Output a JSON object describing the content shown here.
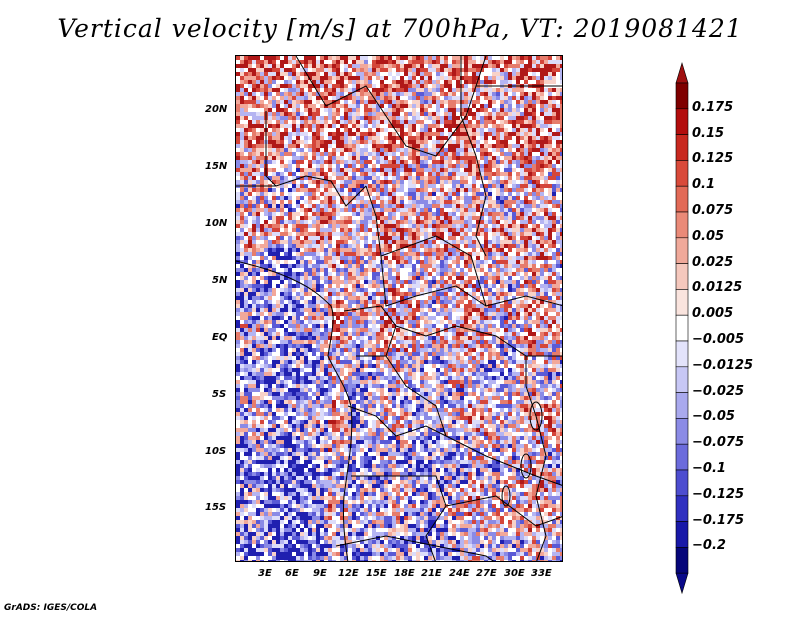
{
  "title": "Vertical velocity [m/s] at 700hPa, VT: 2019081421",
  "footer": "GrADS: IGES/COLA",
  "map": {
    "lat_labels": [
      "20N",
      "15N",
      "10N",
      "5N",
      "EQ",
      "5S",
      "10S",
      "15S"
    ],
    "lon_labels": [
      "3E",
      "6E",
      "9E",
      "12E",
      "15E",
      "18E",
      "21E",
      "24E",
      "27E",
      "30E",
      "33E"
    ]
  },
  "colorbar": {
    "labels": [
      "0.175",
      "0.15",
      "0.125",
      "0.1",
      "0.075",
      "0.05",
      "0.025",
      "0.0125",
      "0.005",
      "−0.005",
      "−0.0125",
      "−0.025",
      "−0.05",
      "−0.075",
      "−0.1",
      "−0.125",
      "−0.175",
      "−0.2"
    ],
    "colors": [
      "#7f0000",
      "#b30d0d",
      "#c8281f",
      "#d94a3a",
      "#e26a57",
      "#ea8a78",
      "#f0a99a",
      "#f5c8bd",
      "#fae4de",
      "#ffffff",
      "#e3e3fb",
      "#c7c7f5",
      "#a9a9ee",
      "#8b8be6",
      "#6b6bdc",
      "#4d4dd0",
      "#3030c0",
      "#1818a8",
      "#06067a"
    ],
    "top_color": "#a01010",
    "bottom_color": "#0a0a8a"
  }
}
